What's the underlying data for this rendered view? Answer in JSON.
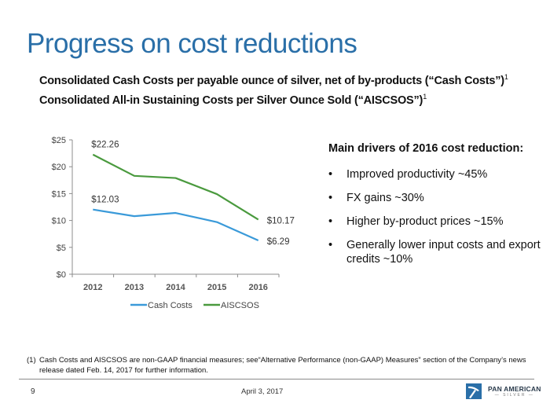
{
  "header": {
    "title": "Progress on cost reductions",
    "subtitle_line1": "Consolidated Cash Costs per payable ounce of silver, net of by-products (“Cash Costs”)",
    "subtitle_line2": "Consolidated All-in Sustaining Costs per Silver Ounce Sold (“AISCSOS”)",
    "footnote_marker": "1"
  },
  "chart_data": {
    "type": "line",
    "title": "",
    "xlabel": "",
    "ylabel": "",
    "categories": [
      "2012",
      "2013",
      "2014",
      "2015",
      "2016"
    ],
    "ylim": [
      0,
      25
    ],
    "yticks": [
      0,
      5,
      10,
      15,
      20,
      25
    ],
    "ytick_labels": [
      "$0",
      "$5",
      "$10",
      "$15",
      "$20",
      "$25"
    ],
    "grid": false,
    "legend_position": "bottom",
    "series": [
      {
        "name": "Cash Costs",
        "color": "#3a9ad9",
        "values": [
          12.03,
          10.8,
          11.4,
          9.7,
          6.29
        ],
        "data_labels": [
          {
            "index": 0,
            "text": "$12.03"
          },
          {
            "index": 4,
            "text": "$6.29"
          }
        ]
      },
      {
        "name": "AISCSOS",
        "color": "#4a9a3e",
        "values": [
          22.26,
          18.3,
          17.9,
          14.9,
          10.17
        ],
        "data_labels": [
          {
            "index": 0,
            "text": "$22.26"
          },
          {
            "index": 4,
            "text": "$10.17"
          }
        ]
      }
    ]
  },
  "drivers": {
    "heading": "Main drivers of 2016 cost reduction:",
    "bullet_glyph": "•",
    "items": [
      "Improved productivity ~45%",
      "FX gains ~30%",
      "Higher by-product prices ~15%",
      "Generally lower input costs and export credits ~10%"
    ]
  },
  "footnote": {
    "marker": "(1)",
    "text": "Cash Costs and AISCSOS are non-GAAP financial measures; see“Alternative Performance (non-GAAP) Measures” section of the Company’s news release dated Feb. 14, 2017 for further information."
  },
  "footer": {
    "page_number": "9",
    "date": "April 3, 2017",
    "logo_name": "PAN AMERICAN",
    "logo_sub": "— SILVER —",
    "logo_icon": "pickaxe-logo-icon",
    "brand_color": "#2a6fa8"
  }
}
